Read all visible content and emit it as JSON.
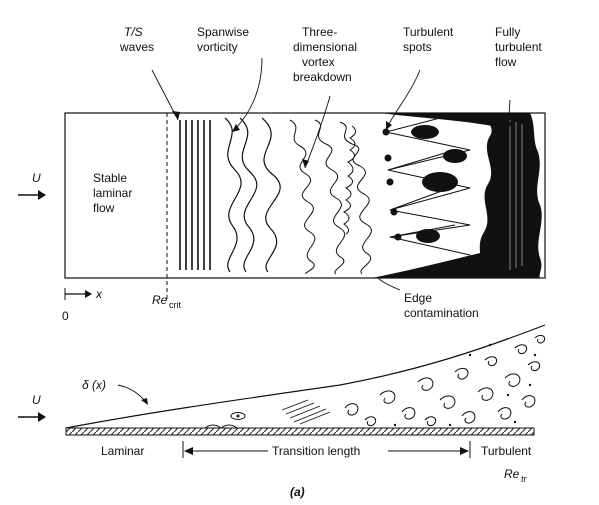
{
  "top_diagram": {
    "labels": {
      "ts_waves_top": "T/S",
      "ts_waves_bottom": "waves",
      "spanwise_1": "Spanwise",
      "spanwise_2": "vorticity",
      "three_d_1": "Three-",
      "three_d_2": "dimensional",
      "three_d_3": "vortex",
      "three_d_4": "breakdown",
      "spots_1": "Turbulent",
      "spots_2": "spots",
      "fully_1": "Fully",
      "fully_2": "turbulent",
      "fully_3": "flow",
      "stable_1": "Stable",
      "stable_2": "laminar",
      "stable_3": "flow",
      "u_label": "U",
      "x_label": "x",
      "zero_label": "0",
      "re_main": "Re",
      "re_sub": "crit",
      "edge_1": "Edge",
      "edge_2": "contamination"
    }
  },
  "bottom_diagram": {
    "labels": {
      "delta_label": "δ (x)",
      "u_label": "U",
      "laminar": "Laminar",
      "transition": "Transition length",
      "turbulent": "Turbulent",
      "re_main": "Re",
      "re_sub": "tr"
    }
  },
  "caption": "(a)"
}
